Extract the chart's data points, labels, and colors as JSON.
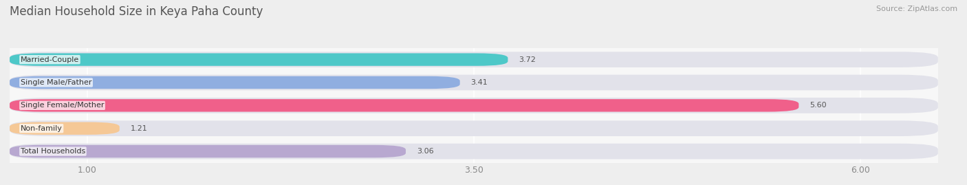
{
  "title": "Median Household Size in Keya Paha County",
  "source": "Source: ZipAtlas.com",
  "categories": [
    "Married-Couple",
    "Single Male/Father",
    "Single Female/Mother",
    "Non-family",
    "Total Households"
  ],
  "values": [
    3.72,
    3.41,
    5.6,
    1.21,
    3.06
  ],
  "bar_colors": [
    "#4ec8c8",
    "#90aee0",
    "#f0608a",
    "#f5c896",
    "#b8a8d0"
  ],
  "xlim_min": 0.5,
  "xlim_max": 6.5,
  "xticks": [
    1.0,
    3.5,
    6.0
  ],
  "xtick_labels": [
    "1.00",
    "3.50",
    "6.00"
  ],
  "outer_bg_color": "#eeeeee",
  "plot_bg_color": "#f7f7f7",
  "bar_bg_color": "#e2e2ea",
  "title_fontsize": 12,
  "label_fontsize": 8,
  "value_fontsize": 8,
  "tick_fontsize": 9,
  "source_fontsize": 8
}
